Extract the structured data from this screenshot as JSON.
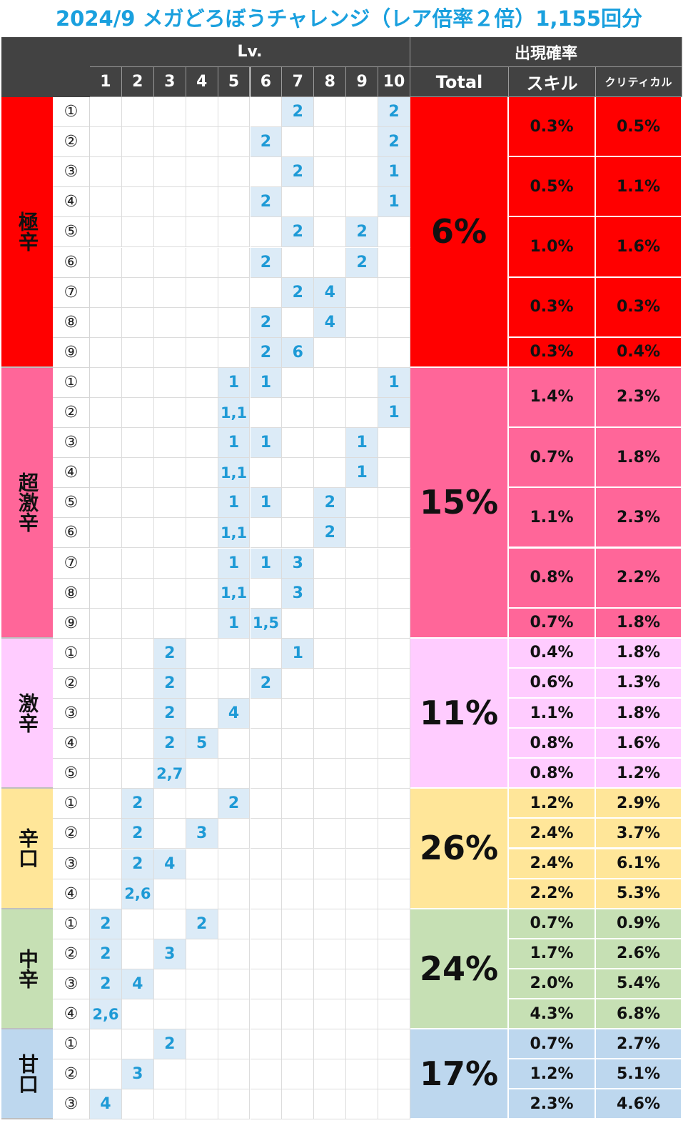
{
  "title": "2024/9 メガどろぼうチャレンジ（レア倍率２倍）1,155回分",
  "header": {
    "lv_label": "Lv.",
    "rate_label": "出現確率",
    "levels": [
      "1",
      "2",
      "3",
      "4",
      "5",
      "6",
      "7",
      "8",
      "9",
      "10"
    ],
    "total_label": "Total",
    "skill_label": "スキル",
    "critical_label": "クリティカル"
  },
  "colors": {
    "header_bg": "#424242",
    "title": "#1aa0de",
    "value_text": "#1e9ad6",
    "highlight": "#dcebf7"
  },
  "groups": [
    {
      "name": "極辛",
      "total": "6%",
      "color": "#ff0000",
      "cat_color": "#ff0000",
      "rows": [
        {
          "num": "①",
          "cells": {
            "7": "2",
            "10": "2"
          }
        },
        {
          "num": "②",
          "cells": {
            "6": "2",
            "10": "2"
          }
        },
        {
          "num": "③",
          "cells": {
            "7": "2",
            "10": "1"
          }
        },
        {
          "num": "④",
          "cells": {
            "6": "2",
            "10": "1"
          }
        },
        {
          "num": "⑤",
          "cells": {
            "7": "2",
            "9": "2"
          }
        },
        {
          "num": "⑥",
          "cells": {
            "6": "2",
            "9": "2"
          }
        },
        {
          "num": "⑦",
          "cells": {
            "7": "2",
            "8": "4"
          }
        },
        {
          "num": "⑧",
          "cells": {
            "6": "2",
            "8": "4"
          }
        },
        {
          "num": "⑨",
          "cells": {
            "6": "2",
            "7": "6"
          }
        }
      ],
      "rates": [
        {
          "span": 2,
          "skill": "0.3%",
          "critical": "0.5%"
        },
        {
          "span": 2,
          "skill": "0.5%",
          "critical": "1.1%"
        },
        {
          "span": 2,
          "skill": "1.0%",
          "critical": "1.6%"
        },
        {
          "span": 2,
          "skill": "0.3%",
          "critical": "0.3%"
        },
        {
          "span": 1,
          "skill": "0.3%",
          "critical": "0.4%"
        }
      ]
    },
    {
      "name": "超激辛",
      "total": "15%",
      "color": "#ff6699",
      "cat_color": "#ff6699",
      "rows": [
        {
          "num": "①",
          "cells": {
            "5": "1",
            "6": "1",
            "10": "1"
          }
        },
        {
          "num": "②",
          "cells": {
            "5": "1,1",
            "10": "1"
          }
        },
        {
          "num": "③",
          "cells": {
            "5": "1",
            "6": "1",
            "9": "1"
          }
        },
        {
          "num": "④",
          "cells": {
            "5": "1,1",
            "9": "1"
          }
        },
        {
          "num": "⑤",
          "cells": {
            "5": "1",
            "6": "1",
            "8": "2"
          }
        },
        {
          "num": "⑥",
          "cells": {
            "5": "1,1",
            "8": "2"
          }
        },
        {
          "num": "⑦",
          "cells": {
            "5": "1",
            "6": "1",
            "7": "3"
          }
        },
        {
          "num": "⑧",
          "cells": {
            "5": "1,1",
            "7": "3"
          }
        },
        {
          "num": "⑨",
          "cells": {
            "5": "1",
            "6": "1,5"
          }
        }
      ],
      "rates": [
        {
          "span": 2,
          "skill": "1.4%",
          "critical": "2.3%"
        },
        {
          "span": 2,
          "skill": "0.7%",
          "critical": "1.8%"
        },
        {
          "span": 2,
          "skill": "1.1%",
          "critical": "2.3%"
        },
        {
          "span": 2,
          "skill": "0.8%",
          "critical": "2.2%"
        },
        {
          "span": 1,
          "skill": "0.7%",
          "critical": "1.8%"
        }
      ]
    },
    {
      "name": "激辛",
      "total": "11%",
      "color": "#ffccff",
      "cat_color": "#ffccff",
      "rows": [
        {
          "num": "①",
          "cells": {
            "3": "2",
            "7": "1"
          }
        },
        {
          "num": "②",
          "cells": {
            "3": "2",
            "6": "2"
          }
        },
        {
          "num": "③",
          "cells": {
            "3": "2",
            "5": "4"
          }
        },
        {
          "num": "④",
          "cells": {
            "3": "2",
            "4": "5"
          }
        },
        {
          "num": "⑤",
          "cells": {
            "3": "2,7"
          }
        }
      ],
      "rates": [
        {
          "span": 1,
          "skill": "0.4%",
          "critical": "1.8%"
        },
        {
          "span": 1,
          "skill": "0.6%",
          "critical": "1.3%"
        },
        {
          "span": 1,
          "skill": "1.1%",
          "critical": "1.8%"
        },
        {
          "span": 1,
          "skill": "0.8%",
          "critical": "1.6%"
        },
        {
          "span": 1,
          "skill": "0.8%",
          "critical": "1.2%"
        }
      ]
    },
    {
      "name": "辛口",
      "total": "26%",
      "color": "#ffe699",
      "cat_color": "#ffe699",
      "rows": [
        {
          "num": "①",
          "cells": {
            "2": "2",
            "5": "2"
          }
        },
        {
          "num": "②",
          "cells": {
            "2": "2",
            "4": "3"
          }
        },
        {
          "num": "③",
          "cells": {
            "2": "2",
            "3": "4"
          }
        },
        {
          "num": "④",
          "cells": {
            "2": "2,6"
          }
        }
      ],
      "rates": [
        {
          "span": 1,
          "skill": "1.2%",
          "critical": "2.9%"
        },
        {
          "span": 1,
          "skill": "2.4%",
          "critical": "3.7%"
        },
        {
          "span": 1,
          "skill": "2.4%",
          "critical": "6.1%"
        },
        {
          "span": 1,
          "skill": "2.2%",
          "critical": "5.3%"
        }
      ]
    },
    {
      "name": "中辛",
      "total": "24%",
      "color": "#c6e0b4",
      "cat_color": "#c6e0b4",
      "rows": [
        {
          "num": "①",
          "cells": {
            "1": "2",
            "4": "2"
          }
        },
        {
          "num": "②",
          "cells": {
            "1": "2",
            "3": "3"
          }
        },
        {
          "num": "③",
          "cells": {
            "1": "2",
            "2": "4"
          }
        },
        {
          "num": "④",
          "cells": {
            "1": "2,6"
          }
        }
      ],
      "rates": [
        {
          "span": 1,
          "skill": "0.7%",
          "critical": "0.9%"
        },
        {
          "span": 1,
          "skill": "1.7%",
          "critical": "2.6%"
        },
        {
          "span": 1,
          "skill": "2.0%",
          "critical": "5.4%"
        },
        {
          "span": 1,
          "skill": "4.3%",
          "critical": "6.8%"
        }
      ]
    },
    {
      "name": "甘口",
      "total": "17%",
      "color": "#bdd7ee",
      "cat_color": "#bdd7ee",
      "rows": [
        {
          "num": "①",
          "cells": {
            "3": "2"
          }
        },
        {
          "num": "②",
          "cells": {
            "2": "3"
          }
        },
        {
          "num": "③",
          "cells": {
            "1": "4"
          }
        }
      ],
      "rates": [
        {
          "span": 1,
          "skill": "0.7%",
          "critical": "2.7%"
        },
        {
          "span": 1,
          "skill": "1.2%",
          "critical": "5.1%"
        },
        {
          "span": 1,
          "skill": "2.3%",
          "critical": "4.6%"
        }
      ]
    }
  ]
}
